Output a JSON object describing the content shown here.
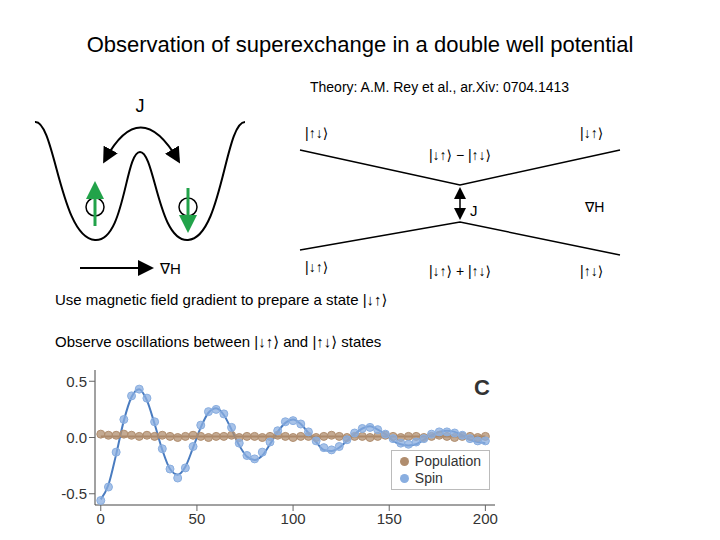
{
  "title": "Observation of superexchange in a double well potential",
  "subtitle": "Theory: A.M. Rey et al., ar.Xiv: 0704.1413",
  "double_well": {
    "coupling_label": "J",
    "gradient_label": "∇H"
  },
  "energy_levels": {
    "gap_label": "J",
    "gradient_label": "∇H",
    "upper_labels": [
      "|↑↓⟩",
      "|↓↑⟩ − |↑↓⟩",
      "|↓↑⟩"
    ],
    "lower_labels": [
      "|↓↑⟩",
      "|↓↑⟩ + |↑↓⟩",
      "|↑↓⟩"
    ]
  },
  "text_lines": [
    "Use magnetic field gradient to prepare a state |↓↑⟩",
    "Observe oscillations between |↓↑⟩ and |↑↓⟩ states"
  ],
  "chart_data": {
    "type": "line",
    "annotation": "C",
    "legend": "lower right",
    "xlim": [
      -3,
      205
    ],
    "xticks": [
      0,
      50,
      100,
      150,
      200
    ],
    "ylim": [
      -0.6,
      0.6
    ],
    "yticks": [
      {
        "value": -0.5,
        "label": "-0.5"
      },
      {
        "value": 0,
        "label": "0.0"
      },
      {
        "value": 0.5,
        "label": "0.5"
      }
    ],
    "x": [
      0,
      4,
      8,
      12,
      16,
      20,
      24,
      28,
      32,
      36,
      40,
      44,
      48,
      52,
      56,
      60,
      64,
      68,
      72,
      76,
      80,
      84,
      88,
      92,
      96,
      100,
      104,
      108,
      112,
      116,
      120,
      124,
      128,
      132,
      136,
      140,
      144,
      148,
      152,
      156,
      160,
      164,
      168,
      172,
      176,
      180,
      184,
      188,
      192,
      196,
      200
    ],
    "series": [
      {
        "name": "Population",
        "type": "scatter",
        "marker": "circle",
        "color": "#b08d6e",
        "values": [
          0.03,
          0.02,
          0.02,
          0.03,
          0.02,
          0.01,
          0.02,
          0.01,
          0.02,
          0.01,
          0.0,
          0.01,
          0.02,
          0.01,
          0.0,
          0.01,
          0.01,
          0.02,
          0.0,
          0.01,
          0.01,
          0.0,
          0.01,
          0.02,
          0.01,
          0.0,
          0.01,
          0.01,
          0.0,
          0.01,
          0.02,
          0.01,
          0.0,
          0.01,
          0.01,
          0.0,
          0.01,
          0.02,
          0.01,
          0.0,
          0.01,
          0.01,
          0.0,
          0.01,
          0.02,
          0.01,
          0.0,
          0.01,
          0.01,
          0.0,
          0.01
        ]
      },
      {
        "name": "Spin",
        "type": "scatter",
        "marker": "circle",
        "color": "#89aee0",
        "values": [
          -0.56,
          -0.44,
          -0.13,
          0.16,
          0.37,
          0.43,
          0.35,
          0.14,
          -0.1,
          -0.28,
          -0.36,
          -0.27,
          -0.08,
          0.11,
          0.23,
          0.25,
          0.21,
          0.09,
          -0.05,
          -0.16,
          -0.19,
          -0.13,
          -0.04,
          0.06,
          0.14,
          0.15,
          0.12,
          0.05,
          -0.03,
          -0.09,
          -0.11,
          -0.08,
          -0.02,
          0.04,
          0.08,
          0.09,
          0.07,
          0.03,
          -0.01,
          -0.05,
          -0.06,
          -0.04,
          -0.01,
          0.03,
          0.05,
          0.05,
          0.04,
          0.02,
          -0.01,
          -0.03,
          -0.03
        ]
      },
      {
        "type": "line",
        "line_style": "solid",
        "color": "#a07d60",
        "values": [
          0.01,
          0.01,
          0.01,
          0.01,
          0.01,
          0.01,
          0.01,
          0.01,
          0.01,
          0.01,
          0.01,
          0.01,
          0.01,
          0.01,
          0.01,
          0.01,
          0.01,
          0.01,
          0.01,
          0.01,
          0.01,
          0.01,
          0.01,
          0.01,
          0.01,
          0.01,
          0.01,
          0.01,
          0.01,
          0.01,
          0.01,
          0.01,
          0.01,
          0.01,
          0.01,
          0.01,
          0.01,
          0.01,
          0.01,
          0.01,
          0.01,
          0.01,
          0.01,
          0.01,
          0.01,
          0.01,
          0.01,
          0.01,
          0.01,
          0.01,
          0.01
        ]
      },
      {
        "type": "line",
        "line_style": "solid",
        "color": "#4a7cc0",
        "values": [
          -0.55,
          -0.42,
          -0.15,
          0.15,
          0.36,
          0.43,
          0.33,
          0.12,
          -0.11,
          -0.28,
          -0.33,
          -0.26,
          -0.09,
          0.09,
          0.22,
          0.26,
          0.2,
          0.07,
          -0.07,
          -0.17,
          -0.2,
          -0.16,
          -0.06,
          0.05,
          0.13,
          0.16,
          0.12,
          0.04,
          -0.04,
          -0.11,
          -0.12,
          -0.09,
          -0.03,
          0.03,
          0.08,
          0.1,
          0.07,
          0.03,
          -0.03,
          -0.06,
          -0.07,
          -0.06,
          -0.02,
          0.02,
          0.05,
          0.06,
          0.05,
          0.02,
          -0.02,
          -0.04,
          -0.05
        ]
      }
    ]
  }
}
